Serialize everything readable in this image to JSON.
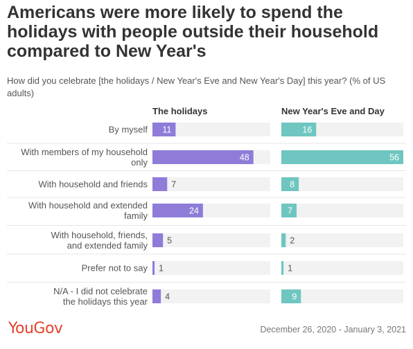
{
  "title": "Americans were more likely to spend the holidays with people outside their household compared to New Year's",
  "subtitle": "How did you celebrate [the holidays / New Year's Eve and New Year's Day] this year? (% of US adults)",
  "brand": "YouGov",
  "date_range": "December 26, 2020 - January 3, 2021",
  "colors": {
    "holidays": "#8e7cd8",
    "new_year": "#6fc6c0",
    "track": "#f2f2f2"
  },
  "chart_data": {
    "type": "bar",
    "orientation": "horizontal",
    "categories": [
      [
        "By myself"
      ],
      [
        "With members of my household",
        "only"
      ],
      [
        "With household and friends"
      ],
      [
        "With household and extended",
        "family"
      ],
      [
        "With household, friends,",
        "and extended family"
      ],
      [
        "Prefer not to say"
      ],
      [
        "N/A - I did not celebrate",
        "the holidays this year"
      ]
    ],
    "series": [
      {
        "name": "The holidays",
        "values": [
          11,
          48,
          7,
          24,
          5,
          1,
          4
        ]
      },
      {
        "name": "New Year's Eve and Day",
        "values": [
          16,
          56,
          8,
          7,
          2,
          1,
          9
        ]
      }
    ],
    "xlim": [
      0,
      56
    ]
  }
}
